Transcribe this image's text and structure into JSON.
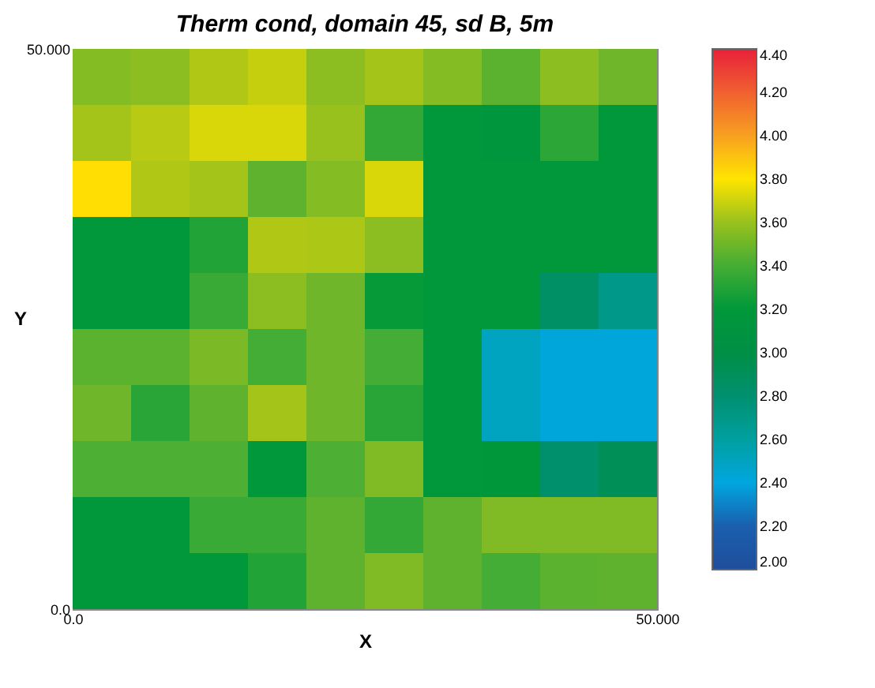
{
  "chart_data": {
    "type": "heatmap",
    "title": "Therm cond, domain 45, sd B, 5m",
    "xlabel": "X",
    "ylabel": "Y",
    "xlim": [
      0,
      50
    ],
    "xticks": [
      {
        "value": 0,
        "label": "0.0"
      },
      {
        "value": 50,
        "label": "50.000"
      }
    ],
    "ylim": [
      0,
      50
    ],
    "yticks": [
      {
        "value": 0,
        "label": "0.0"
      },
      {
        "value": 50,
        "label": "50.000"
      }
    ],
    "clim": [
      2.0,
      4.4
    ],
    "cticks": [
      {
        "value": 2.0,
        "label": "2.00"
      },
      {
        "value": 2.2,
        "label": "2.20"
      },
      {
        "value": 2.4,
        "label": "2.40"
      },
      {
        "value": 2.6,
        "label": "2.60"
      },
      {
        "value": 2.8,
        "label": "2.80"
      },
      {
        "value": 3.0,
        "label": "3.00"
      },
      {
        "value": 3.2,
        "label": "3.20"
      },
      {
        "value": 3.4,
        "label": "3.40"
      },
      {
        "value": 3.6,
        "label": "3.60"
      },
      {
        "value": 3.8,
        "label": "3.80"
      },
      {
        "value": 4.0,
        "label": "4.00"
      },
      {
        "value": 4.2,
        "label": "4.20"
      },
      {
        "value": 4.4,
        "label": "4.40"
      }
    ],
    "cells": [
      [
        3.55,
        3.57,
        3.66,
        3.71,
        3.57,
        3.63,
        3.55,
        3.45,
        3.57,
        3.5
      ],
      [
        3.63,
        3.68,
        3.74,
        3.74,
        3.6,
        3.35,
        3.2,
        3.15,
        3.33,
        3.2
      ],
      [
        3.82,
        3.66,
        3.63,
        3.46,
        3.55,
        3.74,
        3.2,
        3.2,
        3.2,
        3.2
      ],
      [
        3.2,
        3.2,
        3.3,
        3.66,
        3.65,
        3.57,
        3.2,
        3.2,
        3.2,
        3.2
      ],
      [
        3.2,
        3.2,
        3.37,
        3.57,
        3.5,
        3.22,
        3.2,
        3.2,
        2.85,
        2.7
      ],
      [
        3.45,
        3.45,
        3.53,
        3.4,
        3.5,
        3.4,
        3.2,
        2.5,
        2.42,
        2.42
      ],
      [
        3.5,
        3.32,
        3.46,
        3.63,
        3.5,
        3.32,
        3.2,
        2.5,
        2.42,
        2.42
      ],
      [
        3.42,
        3.42,
        3.42,
        3.2,
        3.42,
        3.54,
        3.2,
        3.18,
        2.82,
        2.92
      ],
      [
        3.2,
        3.2,
        3.37,
        3.37,
        3.46,
        3.35,
        3.46,
        3.54,
        3.54,
        3.54
      ],
      [
        3.2,
        3.2,
        3.2,
        3.3,
        3.46,
        3.54,
        3.46,
        3.4,
        3.45,
        3.46
      ]
    ]
  }
}
